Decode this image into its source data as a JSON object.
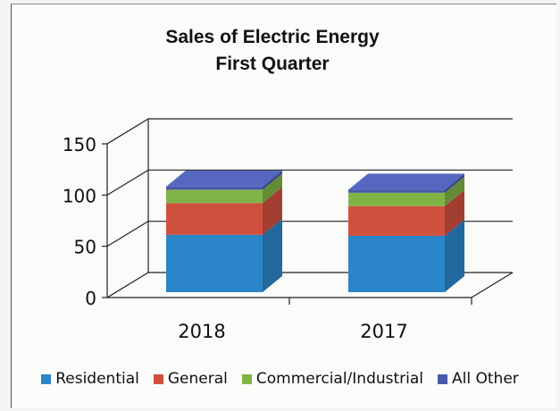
{
  "chart_data": {
    "type": "bar",
    "stacked": true,
    "three_d": true,
    "title": "Sales of Electric Energy",
    "subtitle": "First Quarter",
    "categories": [
      "2018",
      "2017"
    ],
    "series": [
      {
        "name": "Residential",
        "values": [
          56,
          55
        ],
        "color": "#2a86c8"
      },
      {
        "name": "General",
        "values": [
          31,
          29
        ],
        "color": "#d0503f"
      },
      {
        "name": "Commercial/Industrial",
        "values": [
          13,
          13
        ],
        "color": "#80b447"
      },
      {
        "name": "All Other",
        "values": [
          3,
          3
        ],
        "color": "#4a5aa8"
      }
    ],
    "ylim": [
      0,
      150
    ],
    "yticks": [
      "0",
      "50",
      "100",
      "150"
    ],
    "grid": true,
    "legend_position": "bottom"
  }
}
